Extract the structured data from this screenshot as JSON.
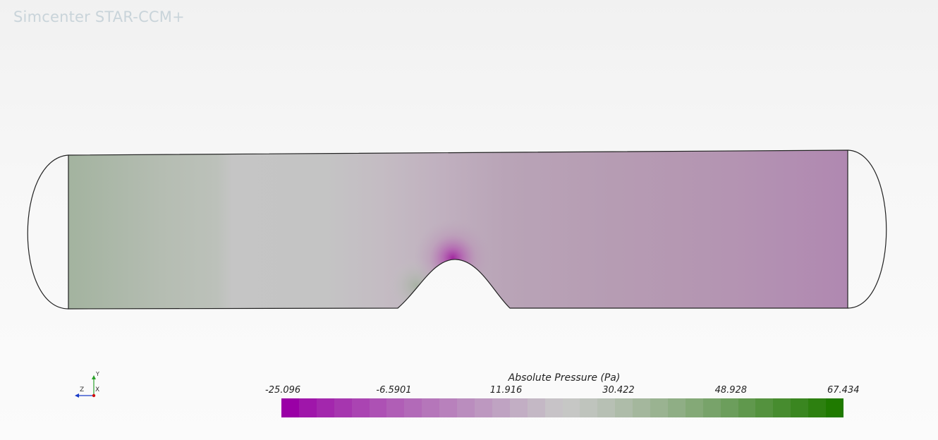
{
  "app": {
    "title": "Simcenter STAR-CCM+"
  },
  "triad": {
    "axis_y": "Y",
    "axis_z": "Z",
    "axis_x": "X"
  },
  "legend": {
    "title": "Absolute Pressure (Pa)",
    "min": -25.096,
    "max": 67.434,
    "tick_labels": [
      "-25.096",
      "-6.5901",
      "11.916",
      "30.422",
      "48.928",
      "67.434"
    ],
    "band_count": 32,
    "min_color": "#9a00a6",
    "mid_color": "#c8c8c8",
    "max_color": "#1f7a00"
  }
}
